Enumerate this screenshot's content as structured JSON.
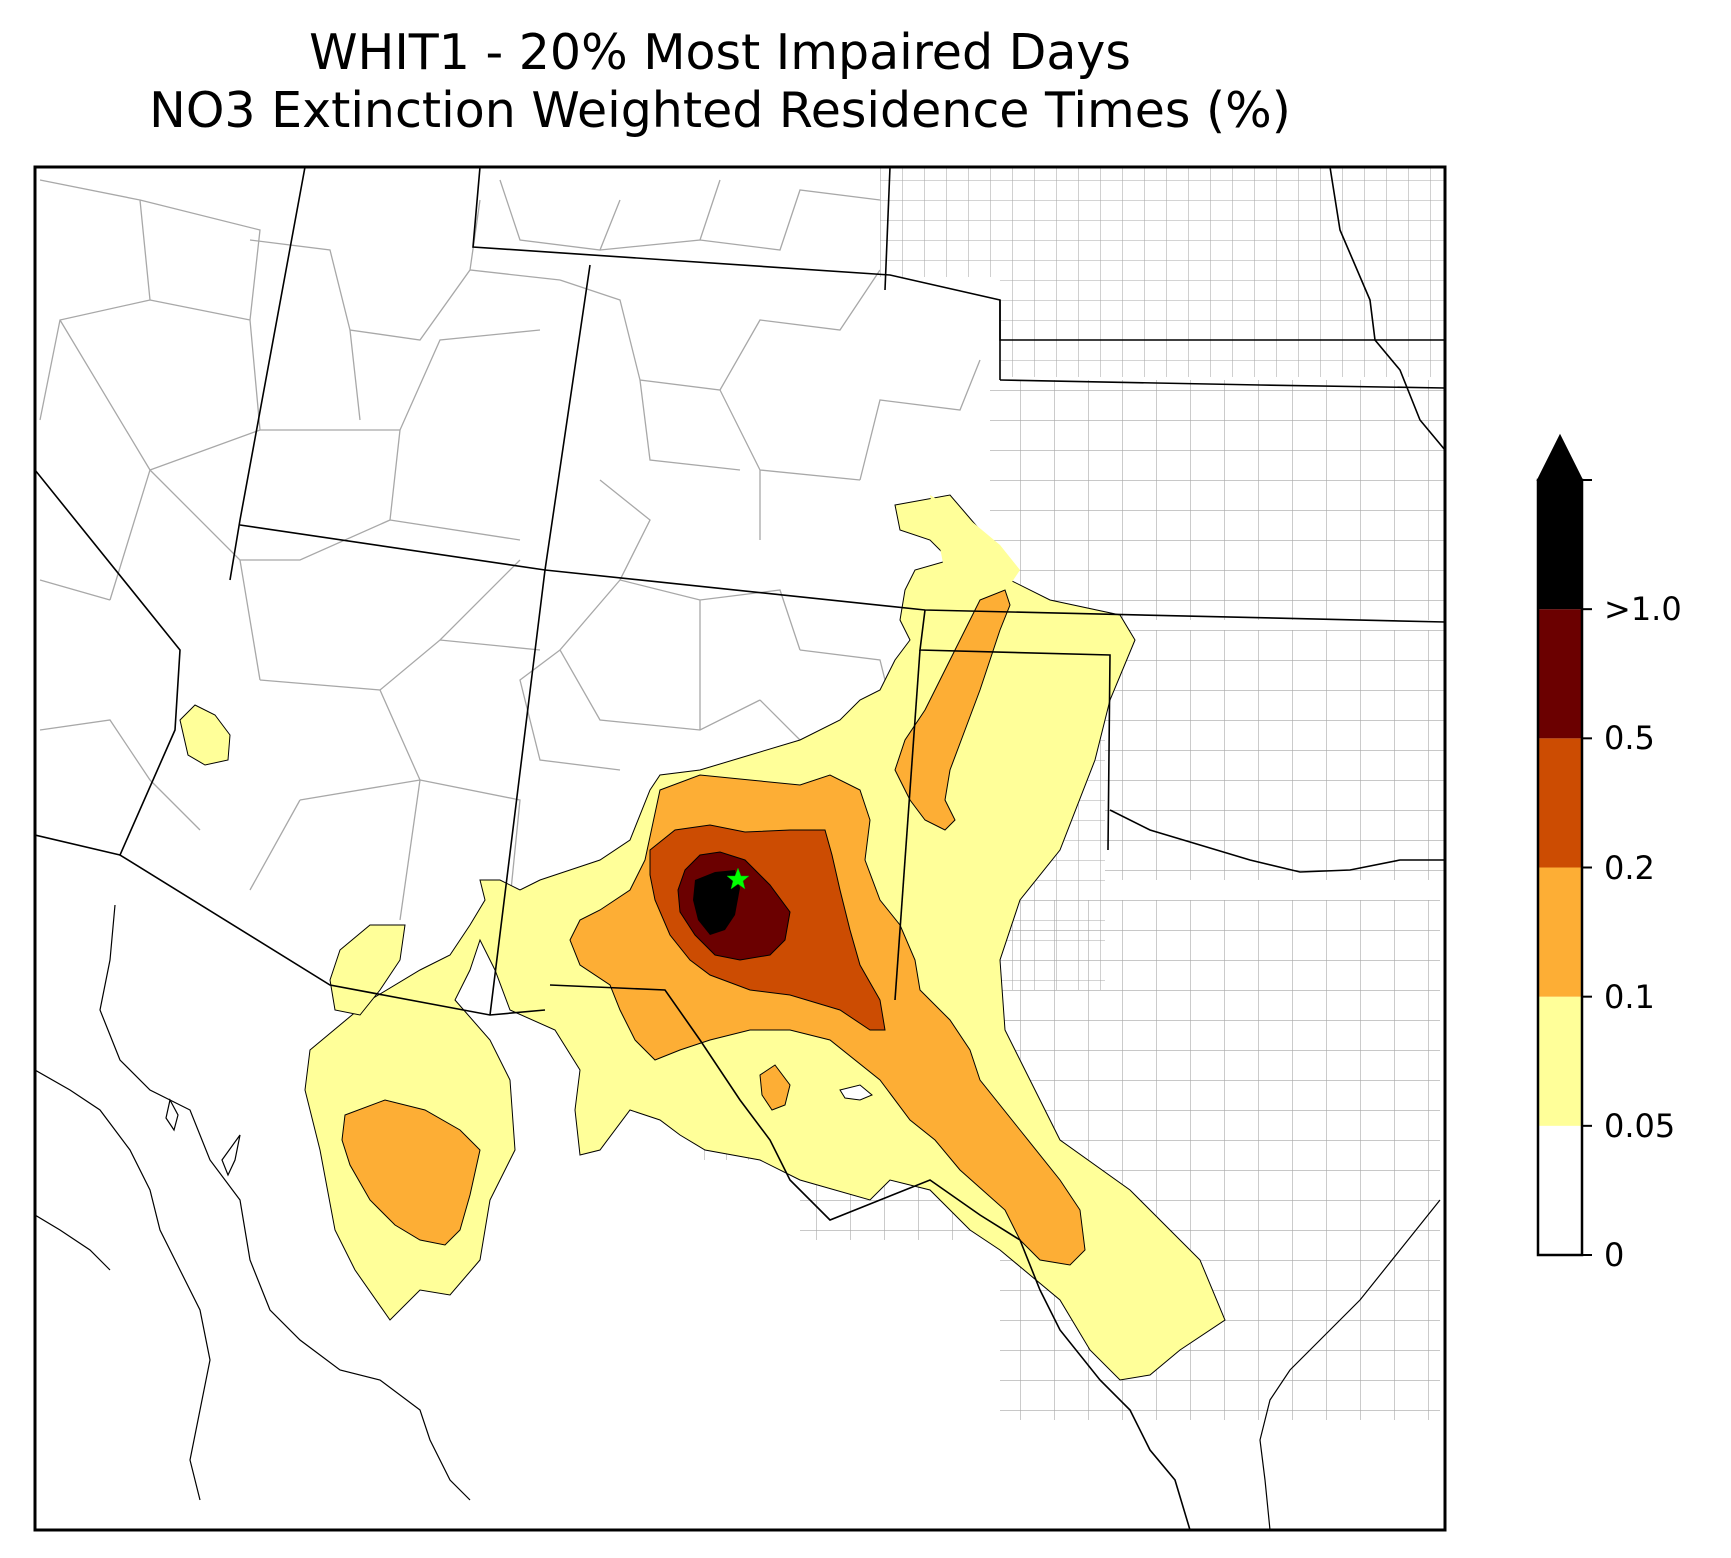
{
  "title": {
    "line1": "WHIT1 - 20% Most Impaired Days",
    "line2": "NO3 Extinction Weighted Residence Times (%)"
  },
  "colorbar": {
    "extend": "max",
    "levels": [
      {
        "label": "0",
        "color": "#ffffff"
      },
      {
        "label": "0.05",
        "color": "#ffff99"
      },
      {
        "label": "0.1",
        "color": "#fdae35"
      },
      {
        "label": "0.2",
        "color": "#cc4c02"
      },
      {
        "label": "0.5",
        "color": "#6b0000"
      },
      {
        "label": ">1.0",
        "color": "#000000"
      }
    ]
  },
  "map": {
    "region": "southwestern-united-states",
    "site_marker": {
      "symbol": "star",
      "color": "#00ff00"
    },
    "state_line_color": "#000000",
    "county_line_color": "#a0a0a0"
  }
}
